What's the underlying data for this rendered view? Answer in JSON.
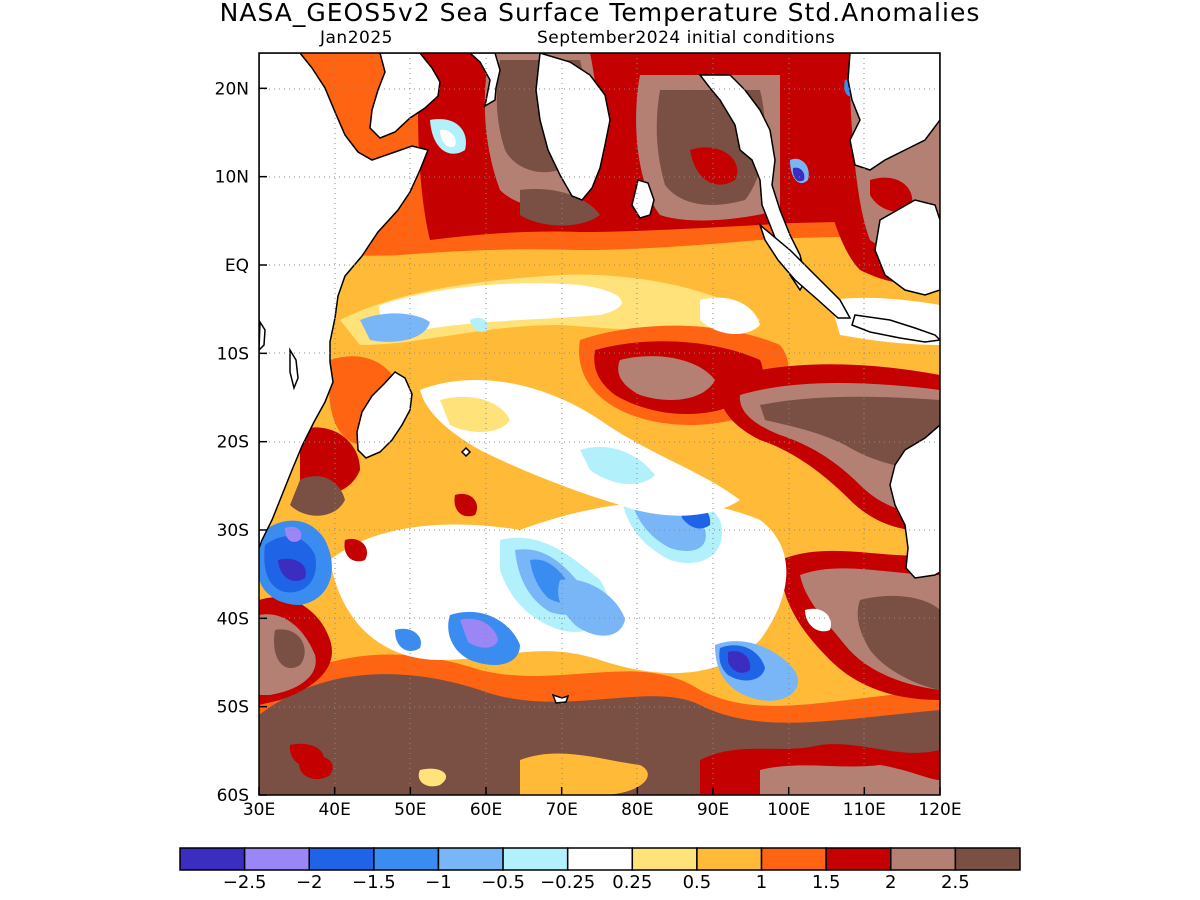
{
  "title": "NASA_GEOS5v2 Sea Surface Temperature Std.Anomalies",
  "subtitle_left": "Jan2025",
  "subtitle_right": "September2024 initial conditions",
  "map": {
    "region": "Indian Ocean",
    "lon_range": [
      30,
      120
    ],
    "lat_range": [
      -60,
      24
    ],
    "grid": true,
    "x_tick_labels": [
      "30E",
      "40E",
      "50E",
      "60E",
      "70E",
      "80E",
      "90E",
      "100E",
      "110E",
      "120E"
    ],
    "y_tick_labels": [
      "20N",
      "10N",
      "EQ",
      "10S",
      "20S",
      "30S",
      "40S",
      "50S",
      "60S"
    ],
    "x_tick_values": [
      30,
      40,
      50,
      60,
      70,
      80,
      90,
      100,
      110,
      120
    ],
    "y_tick_values": [
      20,
      10,
      0,
      -10,
      -20,
      -30,
      -40,
      -50,
      -60
    ]
  },
  "colorbar": {
    "colors": [
      "#3b2dbf",
      "#9b86f5",
      "#1f64e6",
      "#3a8cf0",
      "#78b6f7",
      "#b2f0fb",
      "#ffffff",
      "#ffe27a",
      "#ffbb38",
      "#ff6412",
      "#c40000",
      "#b58074",
      "#7a4f44"
    ],
    "labels": [
      "−2.5",
      "−2",
      "−1.5",
      "−1",
      "−0.5",
      "−0.25",
      "0.25",
      "0.5",
      "1",
      "1.5",
      "2",
      "2.5"
    ]
  }
}
